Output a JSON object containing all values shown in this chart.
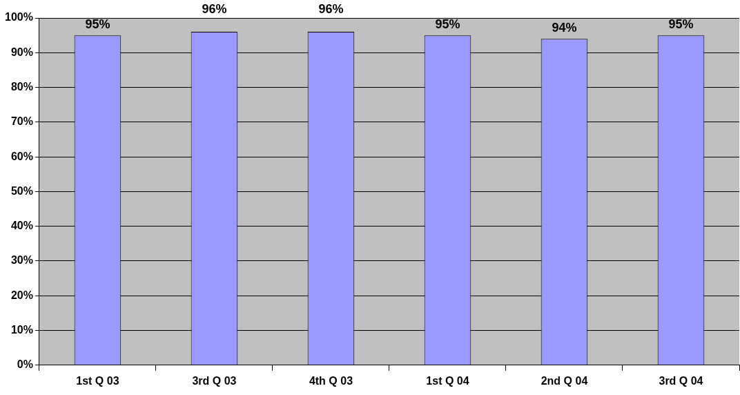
{
  "chart_data": {
    "type": "bar",
    "categories": [
      "1st Q 03",
      "3rd Q 03",
      "4th Q 03",
      "1st Q 04",
      "2nd Q 04",
      "3rd Q 04"
    ],
    "values": [
      95,
      96,
      96,
      95,
      94,
      95
    ],
    "value_labels": [
      "95%",
      "96%",
      "96%",
      "95%",
      "94%",
      "95%"
    ],
    "color": "#9999ff",
    "ylim": [
      0,
      100
    ],
    "yticks": [
      {
        "value": 0,
        "label": "0%"
      },
      {
        "value": 10,
        "label": "10%"
      },
      {
        "value": 20,
        "label": "20%"
      },
      {
        "value": 30,
        "label": "30%"
      },
      {
        "value": 40,
        "label": "40%"
      },
      {
        "value": 50,
        "label": "50%"
      },
      {
        "value": 60,
        "label": "60%"
      },
      {
        "value": 70,
        "label": "70%"
      },
      {
        "value": 80,
        "label": "80%"
      },
      {
        "value": 90,
        "label": "90%"
      },
      {
        "value": 100,
        "label": "100%"
      }
    ],
    "grid": "y",
    "legend": false
  }
}
